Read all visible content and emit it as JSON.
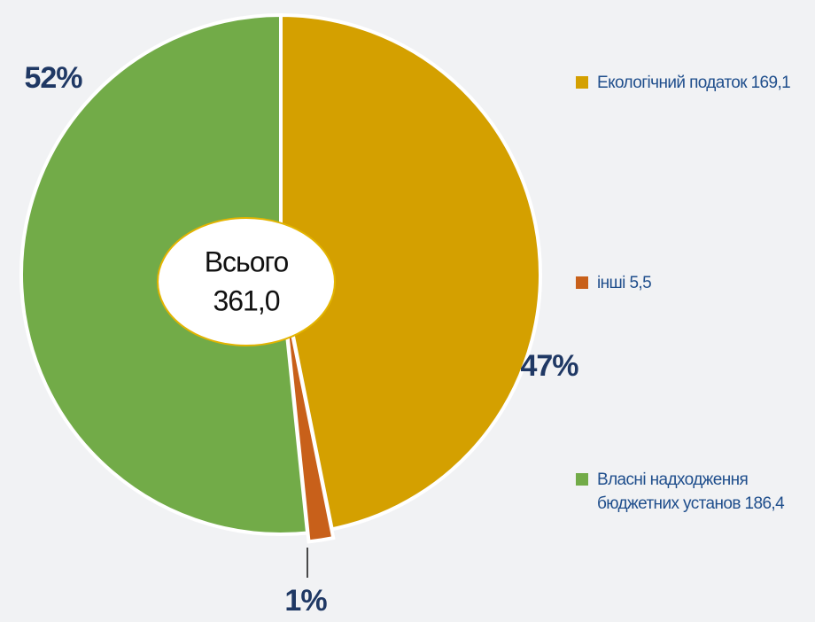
{
  "chart_data": {
    "type": "pie",
    "categories": [
      "Екологічний податок",
      "інші",
      "Власні надходження бюджетних установ"
    ],
    "values": [
      169.1,
      5.5,
      186.4
    ],
    "value_labels": [
      "169,1",
      "5,5",
      "186,4"
    ],
    "percent_labels": [
      "47%",
      "1%",
      "52%"
    ],
    "colors": [
      "#d4a000",
      "#c8601a",
      "#72ab48"
    ],
    "center_label": "Всього",
    "total_label": "361,0"
  }
}
